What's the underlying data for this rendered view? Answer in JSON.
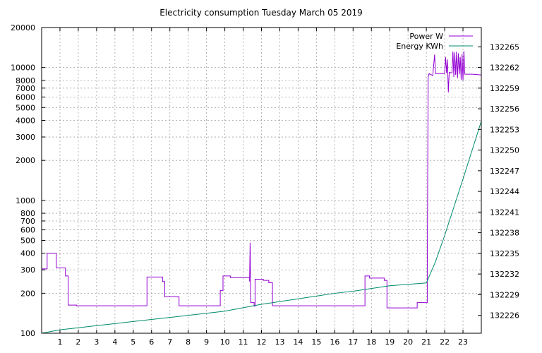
{
  "chart_data": {
    "type": "line",
    "title": "Electricity consumption Tuesday March 05 2019",
    "x_ticks": [
      1,
      2,
      3,
      4,
      5,
      6,
      7,
      8,
      9,
      10,
      11,
      12,
      13,
      14,
      15,
      16,
      17,
      18,
      19,
      20,
      21,
      22,
      23
    ],
    "x_range": [
      0,
      24
    ],
    "y_left": {
      "scale": "log",
      "range": [
        100,
        20000
      ],
      "ticks": [
        100,
        200,
        300,
        400,
        500,
        600,
        700,
        800,
        1000,
        2000,
        3000,
        4000,
        5000,
        6000,
        7000,
        8000,
        10000,
        20000
      ]
    },
    "y_right": {
      "scale": "linear",
      "range": [
        132223.4,
        132267.8
      ],
      "ticks": [
        132226,
        132229,
        132232,
        132235,
        132238,
        132241,
        132244,
        132247,
        132250,
        132253,
        132256,
        132259,
        132262,
        132265
      ]
    },
    "grid": true,
    "legend_position": "top-right",
    "series": [
      {
        "name": "Power W",
        "color": "#9400d3",
        "axis": "left",
        "points": [
          [
            0.0,
            305
          ],
          [
            0.3,
            305
          ],
          [
            0.3,
            400
          ],
          [
            0.8,
            400
          ],
          [
            0.8,
            310
          ],
          [
            1.3,
            310
          ],
          [
            1.3,
            270
          ],
          [
            1.45,
            270
          ],
          [
            1.45,
            163
          ],
          [
            1.9,
            163
          ],
          [
            1.9,
            161
          ],
          [
            5.75,
            161
          ],
          [
            5.75,
            265
          ],
          [
            6.6,
            265
          ],
          [
            6.6,
            245
          ],
          [
            6.72,
            245
          ],
          [
            6.72,
            188
          ],
          [
            7.5,
            188
          ],
          [
            7.5,
            161
          ],
          [
            9.75,
            161
          ],
          [
            9.75,
            210
          ],
          [
            9.9,
            210
          ],
          [
            9.9,
            270
          ],
          [
            10.3,
            270
          ],
          [
            10.3,
            262
          ],
          [
            11.35,
            262
          ],
          [
            11.35,
            245
          ],
          [
            11.38,
            480
          ],
          [
            11.41,
            170
          ],
          [
            11.6,
            170
          ],
          [
            11.6,
            160
          ],
          [
            11.65,
            160
          ],
          [
            11.65,
            255
          ],
          [
            12.1,
            255
          ],
          [
            12.1,
            250
          ],
          [
            12.4,
            250
          ],
          [
            12.4,
            240
          ],
          [
            12.6,
            240
          ],
          [
            12.6,
            161
          ],
          [
            17.65,
            161
          ],
          [
            17.65,
            270
          ],
          [
            17.9,
            270
          ],
          [
            17.9,
            260
          ],
          [
            18.7,
            260
          ],
          [
            18.7,
            250
          ],
          [
            18.85,
            250
          ],
          [
            18.85,
            155
          ],
          [
            20.5,
            155
          ],
          [
            20.5,
            170
          ],
          [
            21.05,
            170
          ],
          [
            21.05,
            300
          ],
          [
            21.1,
            8500
          ],
          [
            21.15,
            9000
          ],
          [
            21.35,
            8700
          ],
          [
            21.45,
            12500
          ],
          [
            21.5,
            9000
          ],
          [
            22.0,
            9000
          ],
          [
            22.05,
            12000
          ],
          [
            22.1,
            9100
          ],
          [
            22.15,
            11500
          ],
          [
            22.2,
            6500
          ],
          [
            22.25,
            9200
          ],
          [
            22.4,
            9100
          ],
          [
            22.45,
            13200
          ],
          [
            22.5,
            8500
          ],
          [
            22.55,
            13000
          ],
          [
            22.6,
            8800
          ],
          [
            22.65,
            13200
          ],
          [
            22.7,
            8300
          ],
          [
            22.75,
            12800
          ],
          [
            22.8,
            8900
          ],
          [
            22.85,
            12000
          ],
          [
            22.9,
            8100
          ],
          [
            22.95,
            12600
          ],
          [
            23.0,
            8000
          ],
          [
            23.05,
            13300
          ],
          [
            23.1,
            8900
          ],
          [
            23.5,
            8900
          ],
          [
            24.0,
            8800
          ]
        ]
      },
      {
        "name": "Energy KWh",
        "color": "#008b6a",
        "axis": "right",
        "points": [
          [
            0.0,
            132223.4
          ],
          [
            1.0,
            132223.9
          ],
          [
            2.0,
            132224.2
          ],
          [
            3.0,
            132224.5
          ],
          [
            4.0,
            132224.8
          ],
          [
            5.0,
            132225.1
          ],
          [
            6.0,
            132225.4
          ],
          [
            7.0,
            132225.7
          ],
          [
            8.0,
            132226.0
          ],
          [
            9.0,
            132226.3
          ],
          [
            10.0,
            132226.6
          ],
          [
            11.0,
            132227.1
          ],
          [
            12.0,
            132227.6
          ],
          [
            13.0,
            132228.0
          ],
          [
            14.0,
            132228.4
          ],
          [
            15.0,
            132228.8
          ],
          [
            16.0,
            132229.2
          ],
          [
            17.0,
            132229.5
          ],
          [
            18.0,
            132229.9
          ],
          [
            19.0,
            132230.3
          ],
          [
            20.0,
            132230.5
          ],
          [
            21.0,
            132230.7
          ],
          [
            21.5,
            132233.8
          ],
          [
            22.0,
            132237.6
          ],
          [
            22.5,
            132241.7
          ],
          [
            23.0,
            132245.8
          ],
          [
            23.5,
            132250.0
          ],
          [
            24.0,
            132254.2
          ]
        ]
      }
    ]
  }
}
